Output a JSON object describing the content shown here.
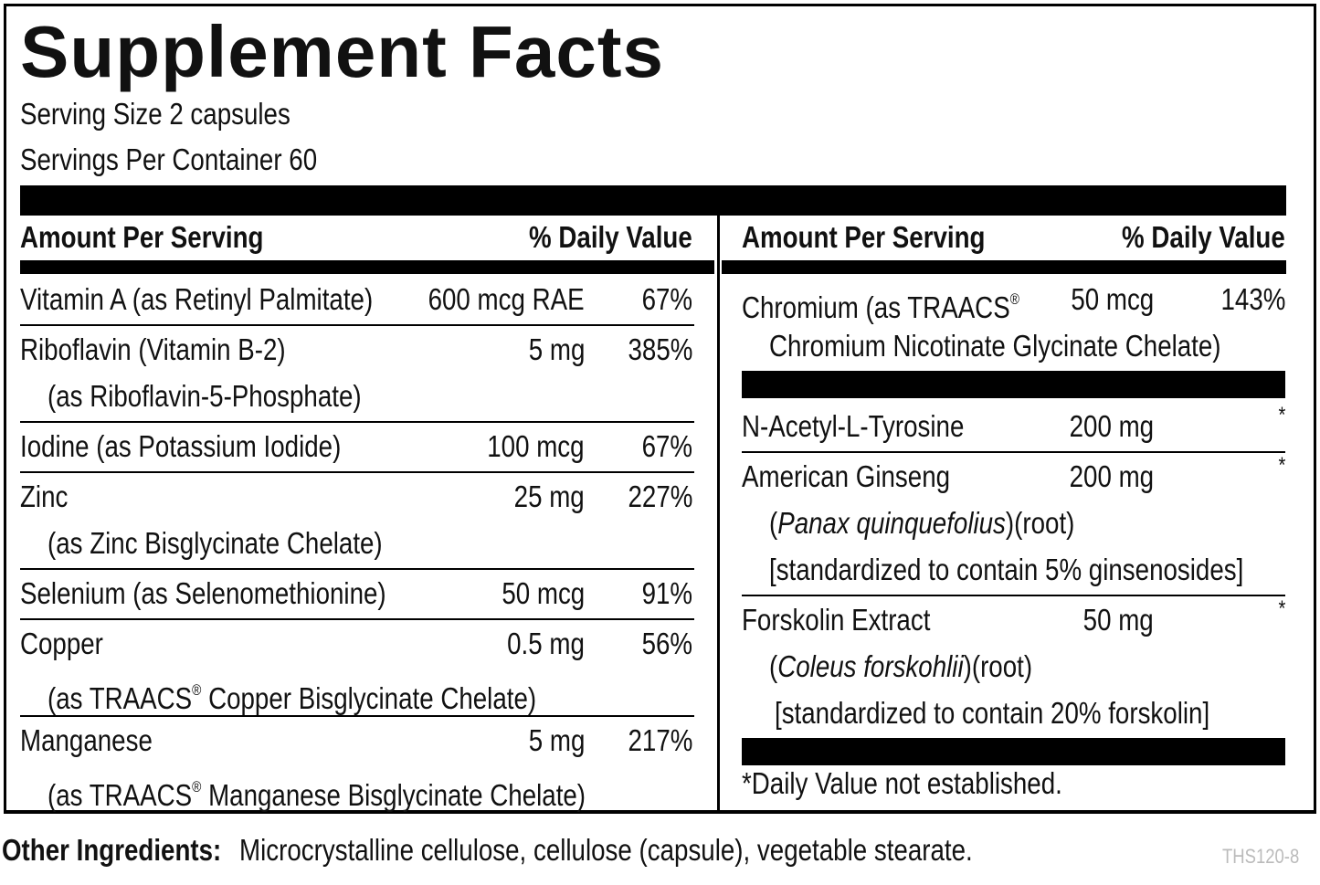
{
  "title": "Supplement Facts",
  "serving_size": "Serving Size 2 capsules",
  "servings_per_container": "Servings Per Container 60",
  "left": {
    "header": {
      "amount": "Amount Per Serving",
      "daily_value": "% Daily Value"
    },
    "rows": [
      {
        "lines": [
          "Vitamin A (as Retinyl Palmitate)"
        ],
        "amount": "600 mcg RAE",
        "daily_value": "67%"
      },
      {
        "lines": [
          "Riboflavin (Vitamin B-2)",
          "(as Riboflavin-5-Phosphate)"
        ],
        "amount": "5 mg",
        "daily_value": "385%"
      },
      {
        "lines": [
          "Iodine (as Potassium Iodide)"
        ],
        "amount": "100 mcg",
        "daily_value": "67%"
      },
      {
        "lines": [
          "Zinc",
          "(as Zinc Bisglycinate Chelate)"
        ],
        "amount": "25 mg",
        "daily_value": "227%"
      },
      {
        "lines": [
          "Selenium (as Selenomethionine)"
        ],
        "amount": "50 mcg",
        "daily_value": "91%"
      },
      {
        "lines": [
          "Copper",
          "(as TRAACS® Copper Bisglycinate Chelate)"
        ],
        "amount": "0.5 mg",
        "daily_value": "56%"
      },
      {
        "lines": [
          "Manganese",
          "(as TRAACS® Manganese Bisglycinate Chelate)"
        ],
        "amount": "5 mg",
        "daily_value": "217%"
      }
    ]
  },
  "right": {
    "header": {
      "amount": "Amount Per Serving",
      "daily_value": "% Daily Value"
    },
    "rows": [
      {
        "lines": [
          "Chromium (as TRAACS®",
          "Chromium Nicotinate Glycinate Chelate)"
        ],
        "amount": "50 mcg",
        "daily_value": "143%"
      },
      {
        "lines": [
          "N-Acetyl-L-Tyrosine"
        ],
        "amount": "200 mg",
        "daily_value": "*"
      },
      {
        "lines": [
          "American Ginseng",
          [
            "(",
            "Panax quinquefolius",
            ")(root)"
          ],
          "[standardized to contain 5% ginsenosides]"
        ],
        "amount": "200 mg",
        "daily_value": "*"
      },
      {
        "lines": [
          "Forskolin Extract",
          [
            "(",
            "Coleus forskohlii",
            ")(root)"
          ],
          "[standardized to contain 20% forskolin]"
        ],
        "amount": "50 mg",
        "daily_value": "*"
      }
    ],
    "footnote": "*Daily Value not established."
  },
  "other_ingredients": {
    "label": "Other Ingredients:",
    "text": "Microcrystalline cellulose, cellulose (capsule), vegetable stearate."
  },
  "code": "THS120-8"
}
